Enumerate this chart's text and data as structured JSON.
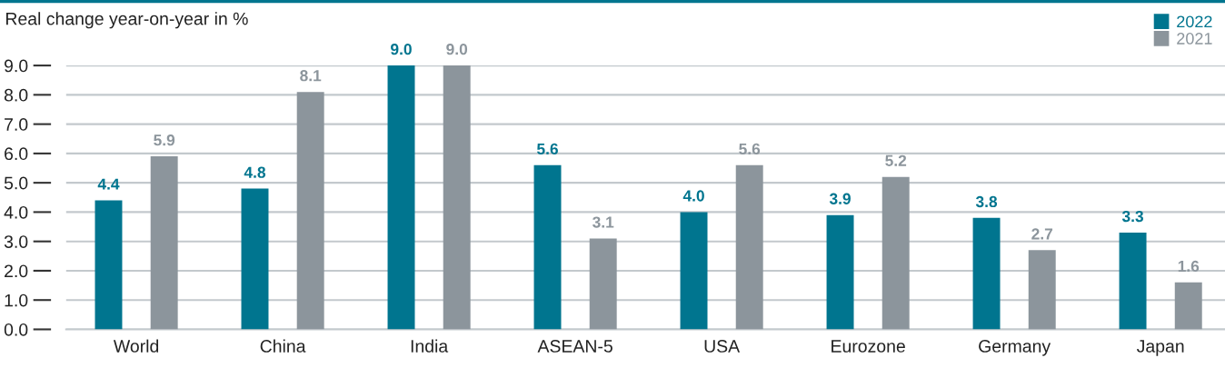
{
  "chart_data": {
    "type": "bar",
    "ylabel": "Real change year-on-year in %",
    "categories": [
      "World",
      "China",
      "India",
      "ASEAN-5",
      "USA",
      "Eurozone",
      "Germany",
      "Japan"
    ],
    "series": [
      {
        "name": "2022",
        "color": "#00758f",
        "values": [
          4.4,
          4.8,
          9.0,
          5.6,
          4.0,
          3.9,
          3.8,
          3.3
        ],
        "value_labels": [
          "4.4",
          "4.8",
          "9.0",
          "5.6",
          "4.0",
          "3.9",
          "3.8",
          "3.3"
        ]
      },
      {
        "name": "2021",
        "color": "#8c959c",
        "values": [
          5.9,
          8.1,
          9.0,
          3.1,
          5.6,
          5.2,
          2.7,
          1.6
        ],
        "value_labels": [
          "5.9",
          "8.1",
          "9.0",
          "3.1",
          "5.6",
          "5.2",
          "2.7",
          "1.6"
        ]
      }
    ],
    "ylim": [
      0,
      9
    ],
    "yticks": [
      {
        "value": 0,
        "label": "0.0"
      },
      {
        "value": 1,
        "label": "1.0"
      },
      {
        "value": 2,
        "label": "2.0"
      },
      {
        "value": 3,
        "label": "3.0"
      },
      {
        "value": 4,
        "label": "4.0"
      },
      {
        "value": 5,
        "label": "5.0"
      },
      {
        "value": 6,
        "label": "6.0"
      },
      {
        "value": 7,
        "label": "7.0"
      },
      {
        "value": 8,
        "label": "8.0"
      },
      {
        "value": 9,
        "label": "9.0"
      }
    ],
    "grid": "y",
    "legend": "top right"
  }
}
